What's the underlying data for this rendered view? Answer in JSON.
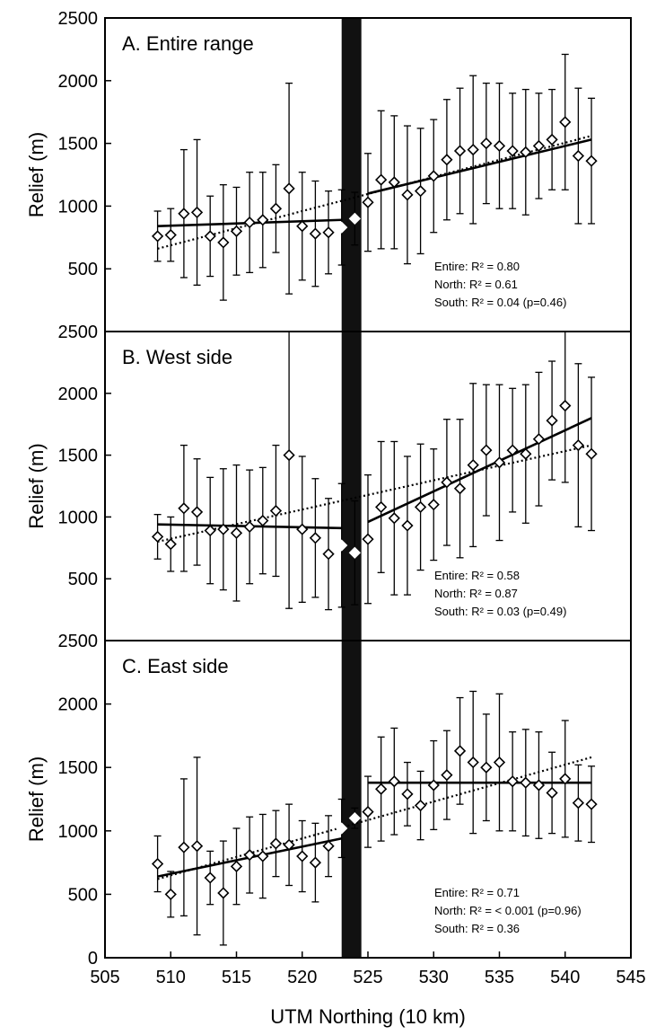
{
  "chart_data": {
    "type": "scatter",
    "xlabel": "UTM Northing (10 km)",
    "ylabel": "Relief (m)",
    "xlim": [
      505,
      545
    ],
    "x_ticks": [
      505,
      510,
      515,
      520,
      525,
      530,
      535,
      540,
      545
    ],
    "ylim": [
      0,
      2500
    ],
    "y_ticks": [
      0,
      500,
      1000,
      1500,
      2000,
      2500
    ],
    "dark_band": [
      523,
      524.5
    ],
    "x": [
      509,
      510,
      511,
      512,
      513,
      514,
      515,
      516,
      517,
      518,
      519,
      520,
      521,
      522,
      523,
      524,
      525,
      526,
      527,
      528,
      529,
      530,
      531,
      532,
      533,
      534,
      535,
      536,
      537,
      538,
      539,
      540,
      541,
      542
    ],
    "panels": [
      {
        "title": "A. Entire range",
        "y_tick_labels": [
          "500",
          "1000",
          "1500",
          "2000",
          "2500"
        ],
        "mean": [
          760,
          770,
          940,
          950,
          760,
          710,
          800,
          870,
          890,
          980,
          1140,
          840,
          780,
          790,
          830,
          900,
          1030,
          1210,
          1190,
          1090,
          1120,
          1240,
          1370,
          1440,
          1450,
          1500,
          1480,
          1440,
          1430,
          1480,
          1530,
          1670,
          1400,
          1360
        ],
        "err": [
          200,
          210,
          510,
          580,
          320,
          460,
          350,
          400,
          380,
          350,
          840,
          430,
          420,
          330,
          300,
          210,
          390,
          550,
          530,
          550,
          500,
          450,
          480,
          500,
          590,
          480,
          500,
          460,
          500,
          420,
          400,
          540,
          540,
          500
        ],
        "fit_south": [
          [
            509,
            840
          ],
          [
            523,
            890
          ]
        ],
        "fit_north": [
          [
            525,
            1100
          ],
          [
            542,
            1530
          ]
        ],
        "fit_entire": [
          [
            509,
            660
          ],
          [
            542,
            1560
          ]
        ],
        "stats": [
          "Entire: R² = 0.80",
          "North: R² = 0.61",
          "South: R² = 0.04 (p=0.46)"
        ]
      },
      {
        "title": "B. West side",
        "y_tick_labels": [
          "500",
          "1000",
          "1500",
          "2000",
          "2500"
        ],
        "mean": [
          840,
          780,
          1070,
          1040,
          890,
          900,
          870,
          920,
          970,
          1050,
          1500,
          900,
          830,
          700,
          770,
          710,
          820,
          1080,
          990,
          930,
          1080,
          1100,
          1280,
          1230,
          1420,
          1540,
          1440,
          1540,
          1510,
          1630,
          1780,
          1900,
          1580,
          1510
        ],
        "err": [
          180,
          220,
          510,
          430,
          430,
          490,
          550,
          460,
          430,
          530,
          1240,
          590,
          480,
          450,
          500,
          420,
          520,
          530,
          620,
          560,
          510,
          450,
          510,
          560,
          660,
          530,
          630,
          500,
          560,
          540,
          480,
          620,
          660,
          620
        ],
        "fit_south": [
          [
            509,
            940
          ],
          [
            523,
            910
          ]
        ],
        "fit_north": [
          [
            525,
            960
          ],
          [
            542,
            1800
          ]
        ],
        "fit_entire": [
          [
            509,
            800
          ],
          [
            542,
            1580
          ]
        ],
        "stats": [
          "Entire: R² = 0.58",
          "North: R² = 0.87",
          "South: R² = 0.03 (p=0.49)"
        ]
      },
      {
        "title": "C. East side",
        "y_tick_labels": [
          "0",
          "500",
          "1000",
          "1500",
          "2000",
          "2500"
        ],
        "mean": [
          740,
          500,
          870,
          880,
          630,
          510,
          720,
          810,
          800,
          900,
          890,
          800,
          750,
          880,
          1020,
          1100,
          1150,
          1330,
          1390,
          1290,
          1200,
          1360,
          1440,
          1630,
          1540,
          1500,
          1540,
          1390,
          1380,
          1360,
          1300,
          1410,
          1220,
          1210
        ],
        "err": [
          220,
          180,
          540,
          700,
          210,
          410,
          300,
          300,
          330,
          260,
          320,
          280,
          310,
          240,
          230,
          80,
          280,
          410,
          420,
          250,
          270,
          350,
          350,
          420,
          560,
          420,
          540,
          390,
          420,
          420,
          320,
          460,
          300,
          300
        ],
        "fit_south": [
          [
            509,
            640
          ],
          [
            523,
            940
          ]
        ],
        "fit_north": [
          [
            525,
            1380
          ],
          [
            542,
            1380
          ]
        ],
        "fit_entire": [
          [
            509,
            620
          ],
          [
            542,
            1580
          ]
        ],
        "stats": [
          "Entire: R² = 0.71",
          "North: R² = < 0.001 (p=0.96)",
          "South: R² = 0.36"
        ]
      }
    ]
  }
}
